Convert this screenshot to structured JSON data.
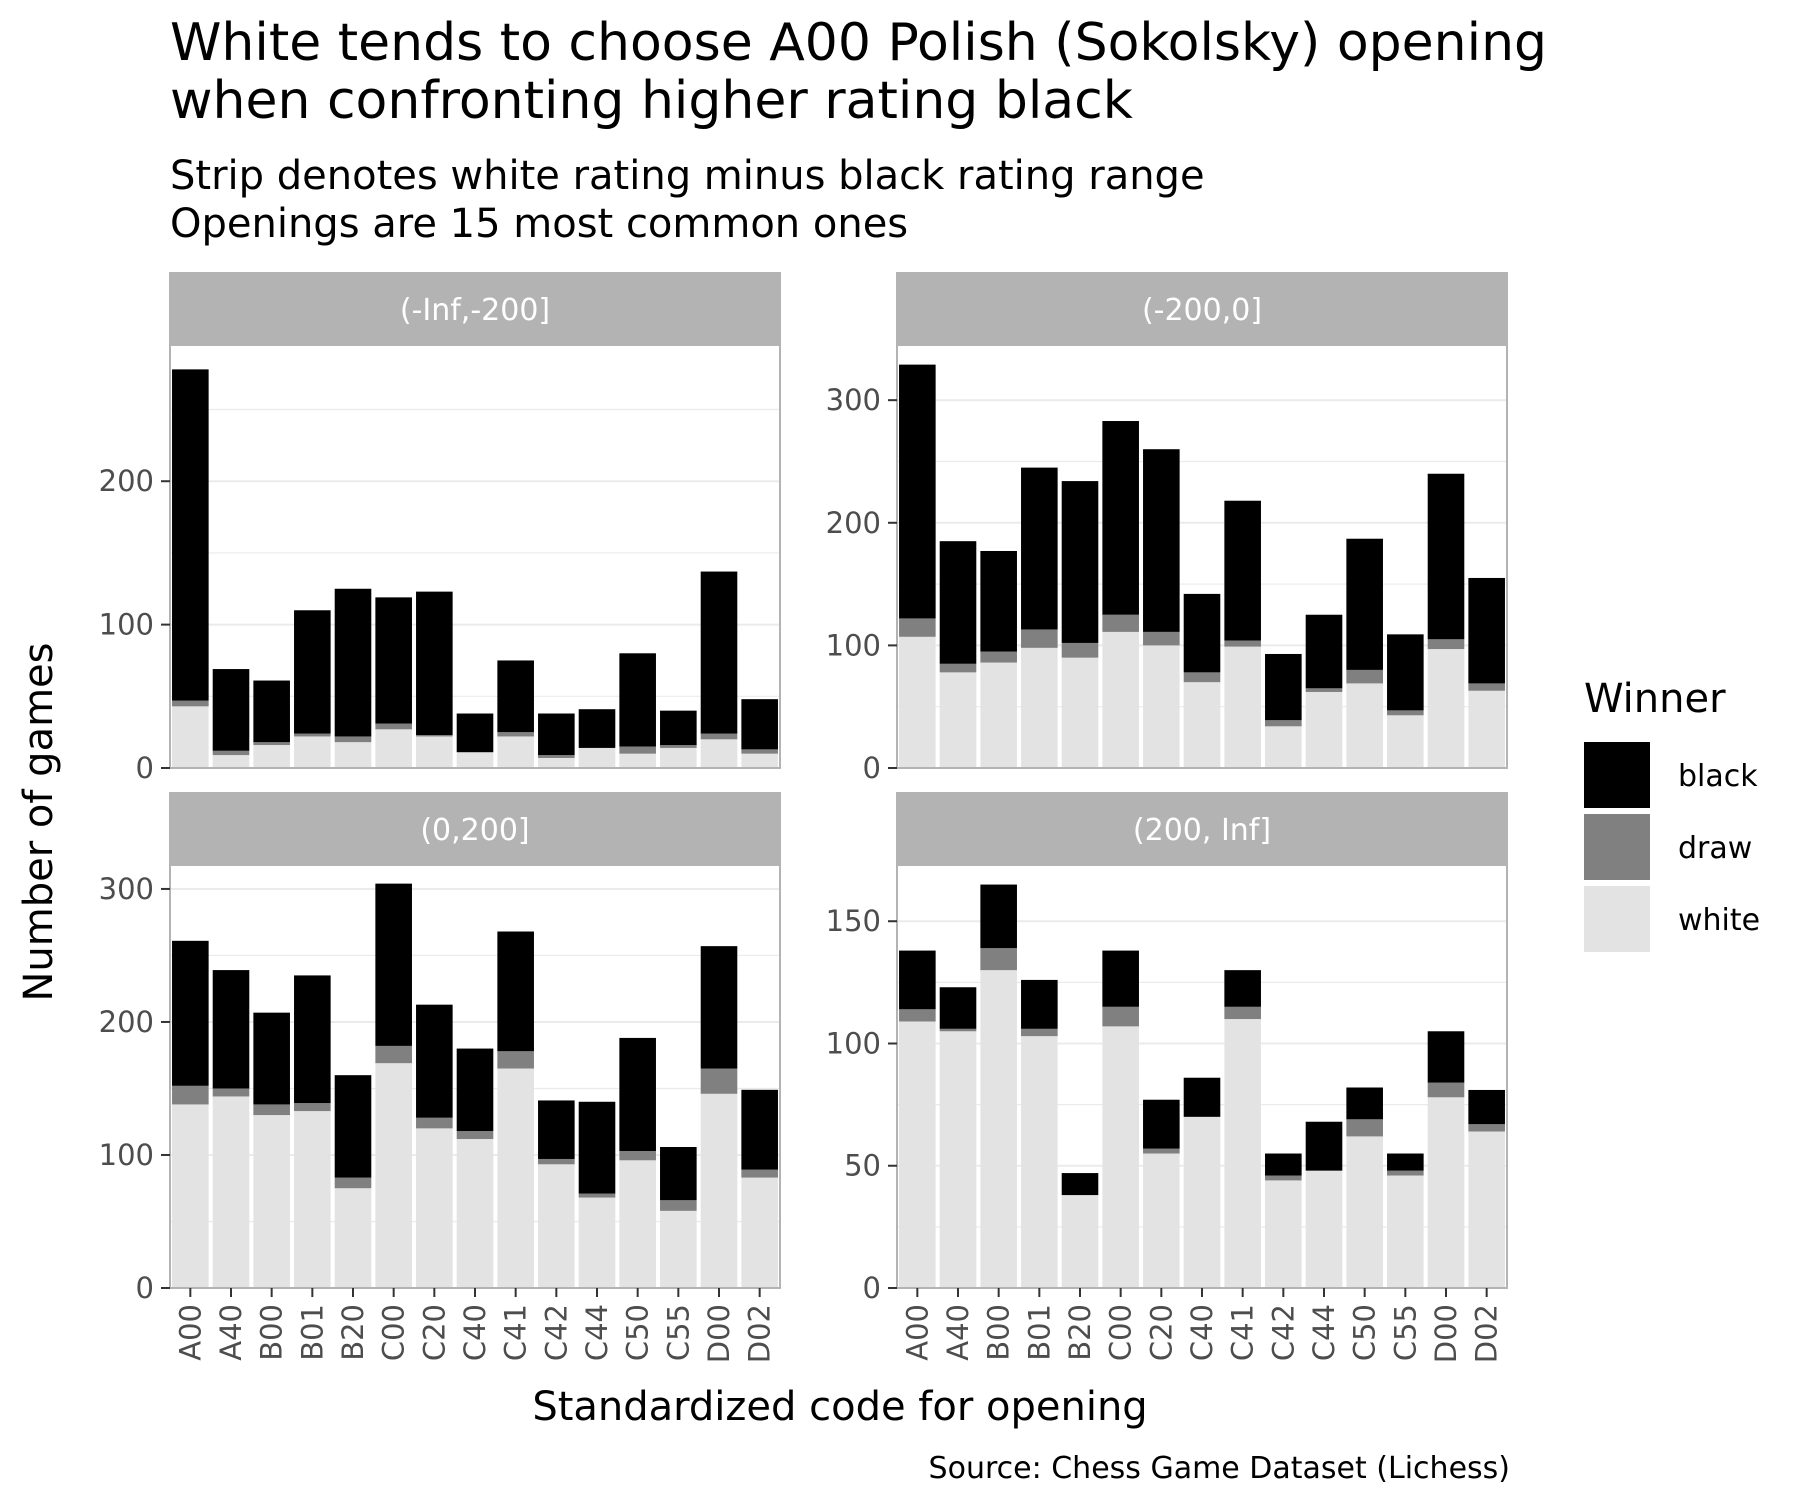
{
  "chart_data": {
    "type": "bar",
    "stacked": true,
    "title": [
      "White tends to choose A00 Polish (Sokolsky) opening",
      "when confronting higher rating black"
    ],
    "subtitle": [
      "Strip denotes white rating minus black rating range",
      "Openings are 15 most common ones"
    ],
    "xlabel": "Standardized code for opening",
    "ylabel": "Number of games",
    "caption": "Source: Chess Game Dataset (Lichess)",
    "legend": {
      "title": "Winner",
      "position": "right",
      "entries": [
        "black",
        "draw",
        "white"
      ]
    },
    "colors": {
      "black": "#000000",
      "draw": "#808080",
      "white": "#e3e3e3",
      "strip": "#b3b3b3",
      "grid": "#ebebeb",
      "border": "#b3b3b3"
    },
    "categories": [
      "A00",
      "A40",
      "B00",
      "B01",
      "B20",
      "C00",
      "C20",
      "C40",
      "C41",
      "C42",
      "C44",
      "C50",
      "C55",
      "D00",
      "D02"
    ],
    "panels": [
      {
        "strip": "(-Inf,-200]",
        "ylim": [
          0,
          295
        ],
        "yticks": [
          0,
          100,
          200
        ],
        "series": [
          {
            "name": "white",
            "values": [
              43,
              9,
              16,
              22,
              18,
              27,
              22,
              11,
              22,
              7,
              14,
              10,
              14,
              20,
              10
            ]
          },
          {
            "name": "draw",
            "values": [
              4,
              3,
              2,
              2,
              4,
              4,
              1,
              0,
              3,
              2,
              0,
              5,
              2,
              4,
              3
            ]
          },
          {
            "name": "black",
            "values": [
              231,
              57,
              43,
              86,
              103,
              88,
              100,
              27,
              50,
              29,
              27,
              65,
              24,
              113,
              35
            ]
          }
        ]
      },
      {
        "strip": "(-200,0]",
        "ylim": [
          0,
          345
        ],
        "yticks": [
          0,
          100,
          200,
          300
        ],
        "series": [
          {
            "name": "white",
            "values": [
              107,
              78,
              86,
              98,
              90,
              111,
              100,
              70,
              99,
              34,
              62,
              69,
              43,
              97,
              63
            ]
          },
          {
            "name": "draw",
            "values": [
              15,
              7,
              9,
              15,
              12,
              14,
              11,
              8,
              5,
              5,
              3,
              11,
              4,
              8,
              6
            ]
          },
          {
            "name": "black",
            "values": [
              207,
              100,
              82,
              132,
              132,
              158,
              149,
              64,
              114,
              54,
              60,
              107,
              62,
              135,
              86
            ]
          }
        ]
      },
      {
        "strip": "(0,200]",
        "ylim": [
          0,
          318
        ],
        "yticks": [
          0,
          100,
          200,
          300
        ],
        "series": [
          {
            "name": "white",
            "values": [
              138,
              144,
              130,
              133,
              75,
              169,
              120,
              112,
              165,
              93,
              68,
              96,
              58,
              146,
              83
            ]
          },
          {
            "name": "draw",
            "values": [
              14,
              6,
              8,
              6,
              8,
              13,
              8,
              6,
              13,
              4,
              3,
              7,
              8,
              19,
              6
            ]
          },
          {
            "name": "black",
            "values": [
              109,
              89,
              69,
              96,
              77,
              122,
              85,
              62,
              90,
              44,
              69,
              85,
              40,
              92,
              60
            ]
          }
        ]
      },
      {
        "strip": "(200, Inf]",
        "ylim": [
          0,
          173
        ],
        "yticks": [
          0,
          50,
          100,
          150
        ],
        "series": [
          {
            "name": "white",
            "values": [
              109,
              105,
              130,
              103,
              38,
              107,
              55,
              70,
              110,
              44,
              48,
              62,
              46,
              78,
              64
            ]
          },
          {
            "name": "draw",
            "values": [
              5,
              1,
              9,
              3,
              0,
              8,
              2,
              0,
              5,
              2,
              0,
              7,
              2,
              6,
              3
            ]
          },
          {
            "name": "black",
            "values": [
              24,
              17,
              26,
              20,
              9,
              23,
              20,
              16,
              15,
              9,
              20,
              13,
              7,
              21,
              14
            ]
          }
        ]
      }
    ]
  }
}
